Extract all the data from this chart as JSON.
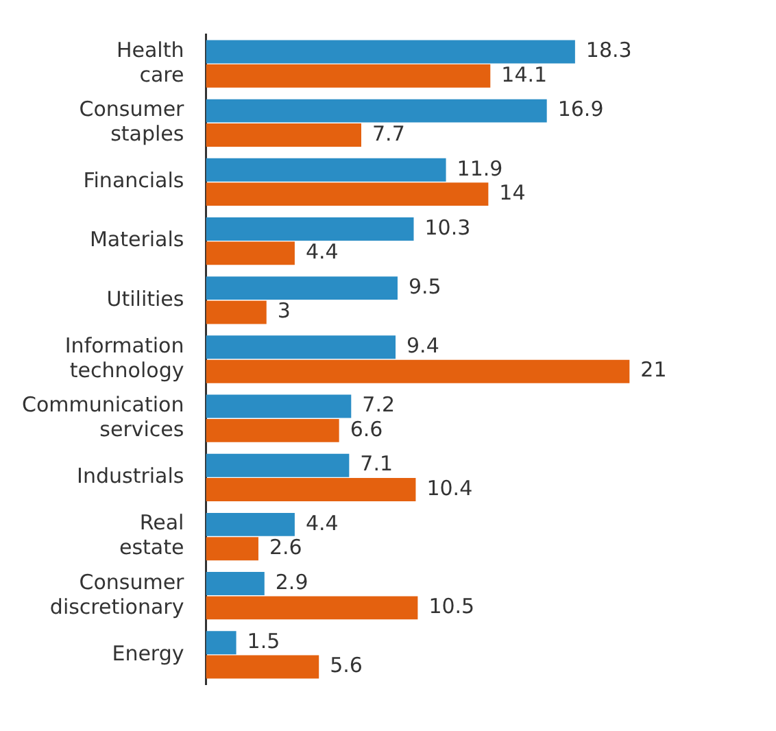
{
  "chart_data": {
    "type": "bar",
    "orientation": "horizontal",
    "data_labels": true,
    "legend": false,
    "grid": false,
    "tick_labels": "y",
    "categories": [
      "Health care",
      "Consumer staples",
      "Financials",
      "Materials",
      "Utilities",
      "Information technology",
      "Communication services",
      "Industrials",
      "Real estate",
      "Consumer discretionary",
      "Energy"
    ],
    "series": [
      {
        "color": "#2a8dc5",
        "values": [
          18.3,
          16.9,
          11.9,
          10.3,
          9.5,
          9.4,
          7.2,
          7.1,
          4.4,
          2.9,
          1.5
        ]
      },
      {
        "color": "#e4610f",
        "values": [
          14.1,
          7.7,
          14,
          4.4,
          3,
          21,
          6.6,
          10.4,
          2.6,
          10.5,
          5.6
        ]
      }
    ]
  }
}
